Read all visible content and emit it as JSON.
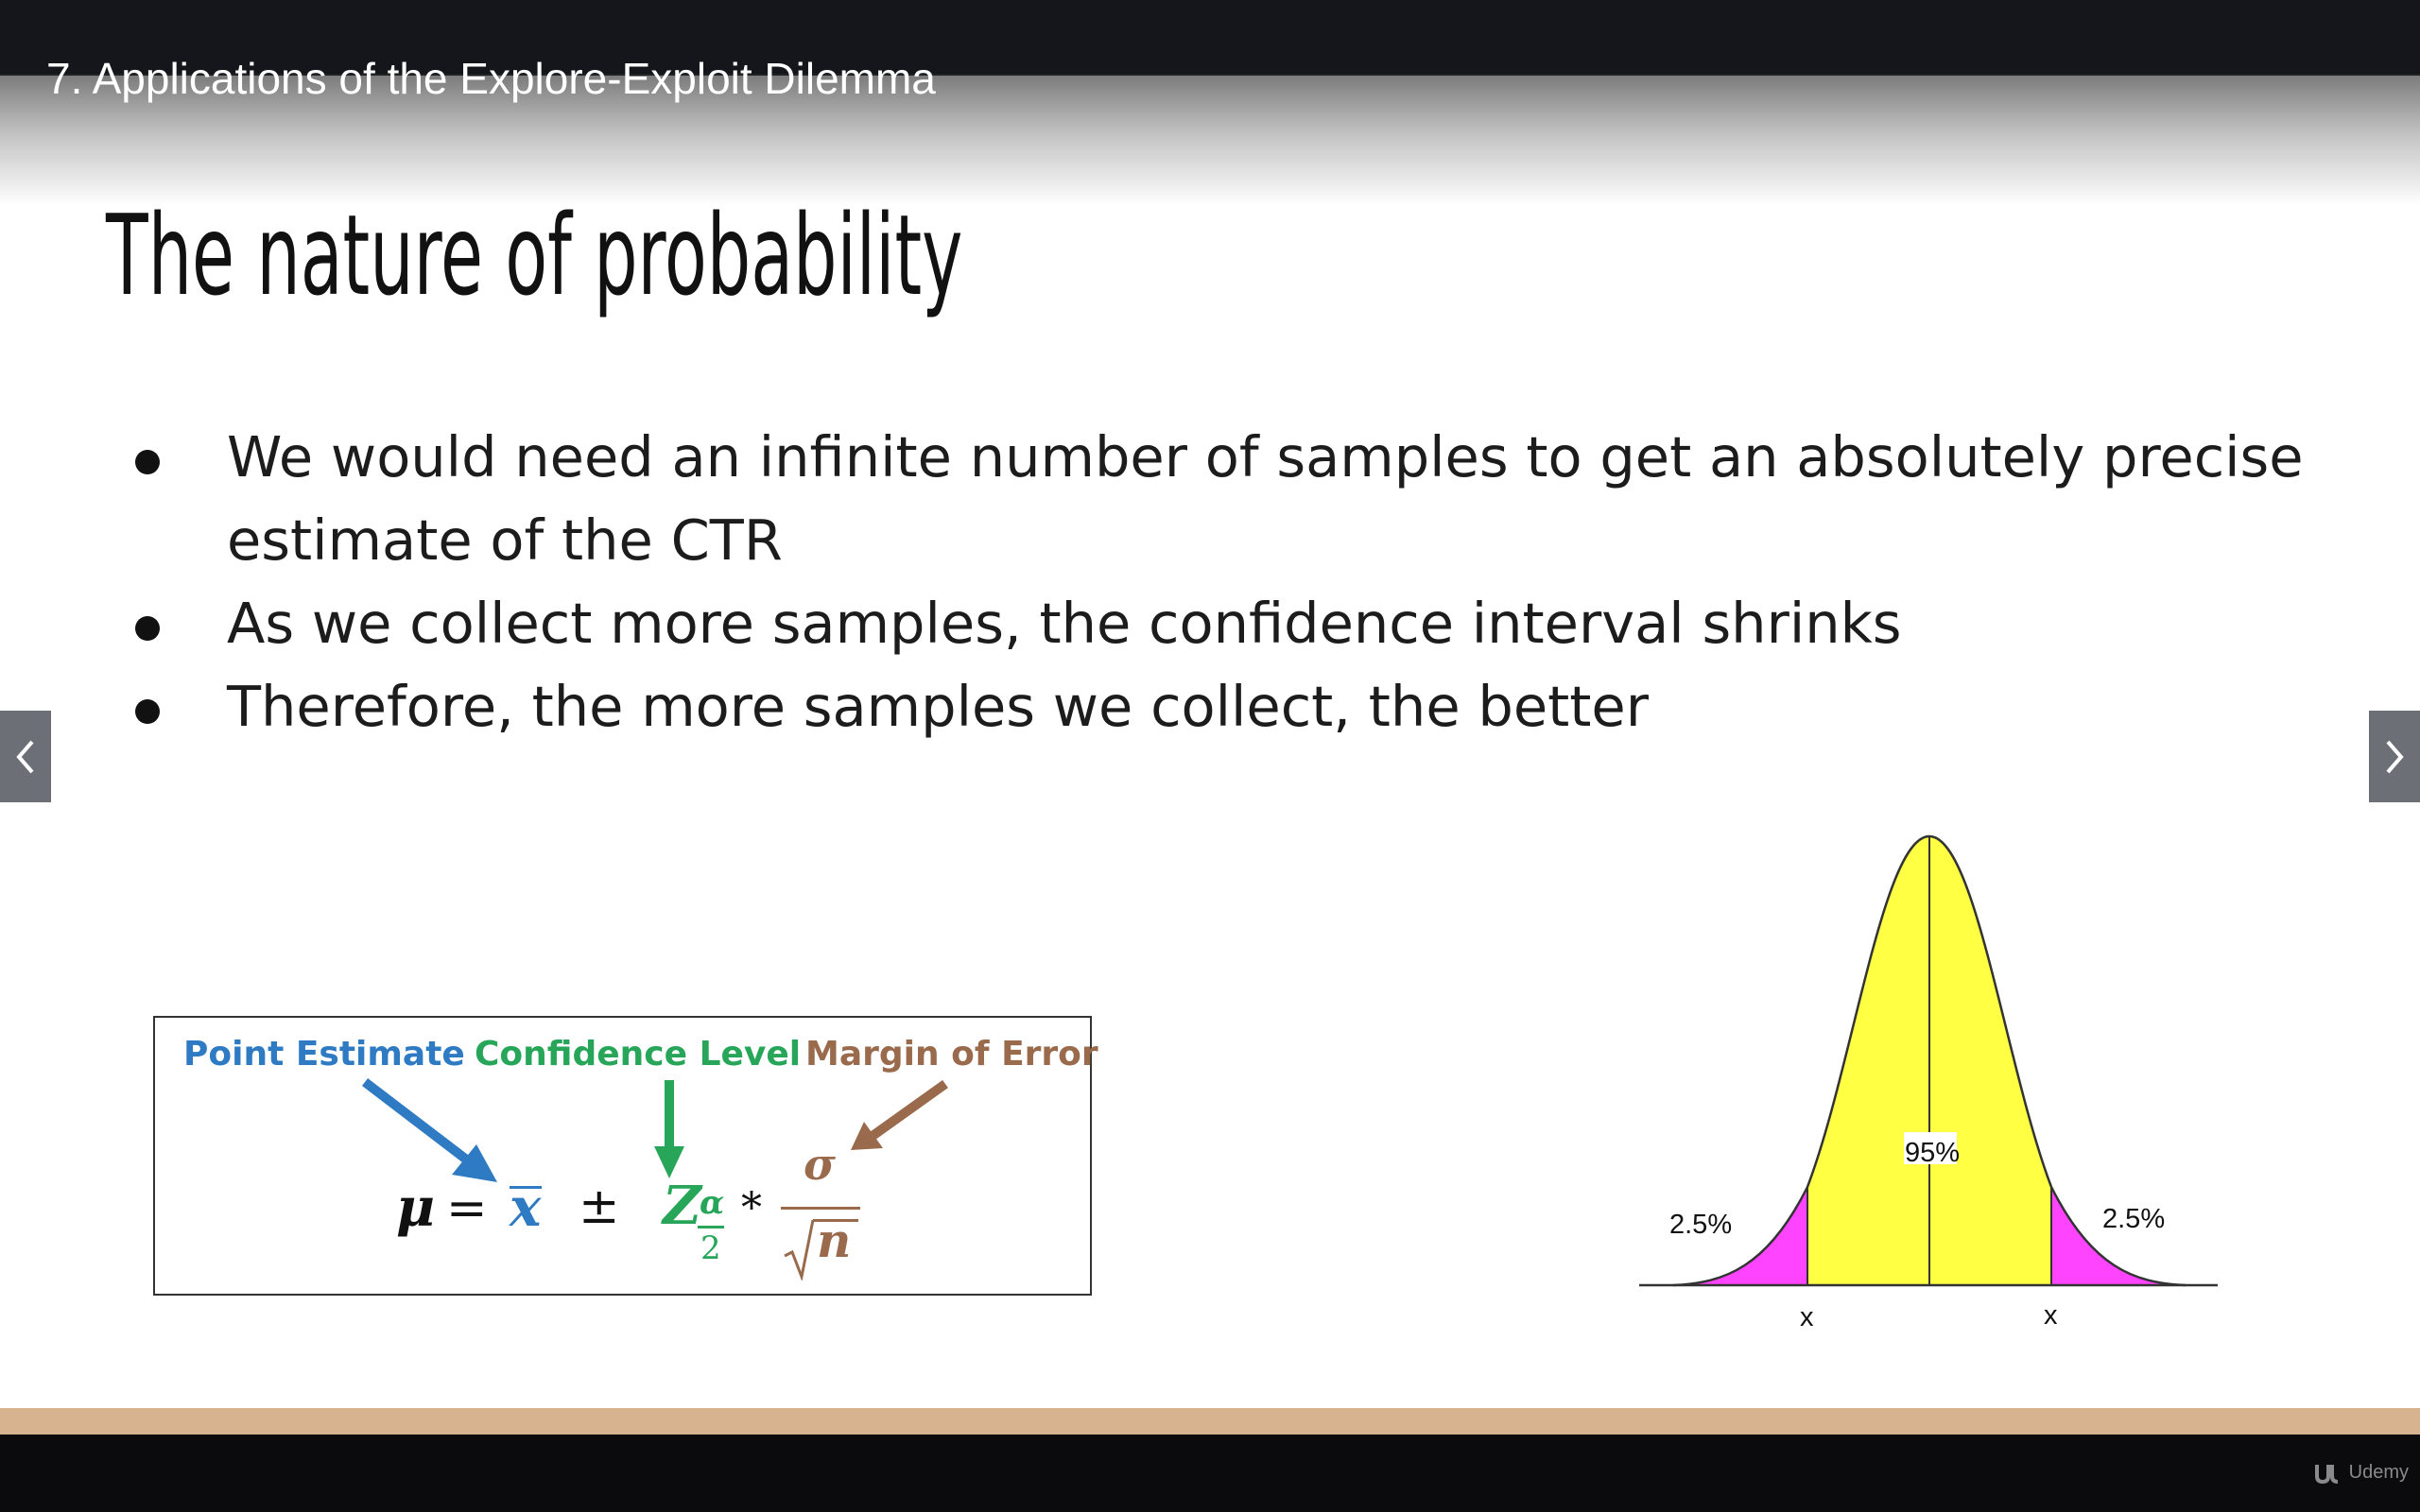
{
  "header": {
    "lecture_title": "7. Applications of the Explore-Exploit Dilemma"
  },
  "slide": {
    "title": "The nature of probability",
    "bullets": [
      "We would need an infinite number of samples to get an absolutely precise estimate of the CTR",
      "As we collect more samples, the confidence interval shrinks",
      "Therefore, the more samples we collect, the better"
    ],
    "formula": {
      "labels": {
        "point_estimate": "Point Estimate",
        "confidence_level": "Confidence Level",
        "margin_of_error": "Margin of Error"
      },
      "symbols": {
        "mu": "μ",
        "equals": "=",
        "xbar": "x",
        "plus_minus": "±",
        "z": "Z",
        "alpha": "α",
        "two": "2",
        "times": "*",
        "sigma": "σ",
        "n": "n"
      },
      "colors": {
        "point_estimate": "#2e7bc4",
        "confidence_level": "#27a65a",
        "margin_of_error": "#9a6a4c"
      }
    },
    "distribution": {
      "center_label": "95%",
      "left_tail_label": "2.5%",
      "right_tail_label": "2.5%",
      "left_marker": "x",
      "right_marker": "x",
      "center_fill": "#ffff44",
      "tail_fill": "#ff44ff"
    }
  },
  "navigation": {
    "prev_icon": "chevron-left-icon",
    "next_icon": "chevron-right-icon"
  },
  "footer": {
    "brand": "Udemy",
    "stripe_color": "#d7b48f"
  }
}
